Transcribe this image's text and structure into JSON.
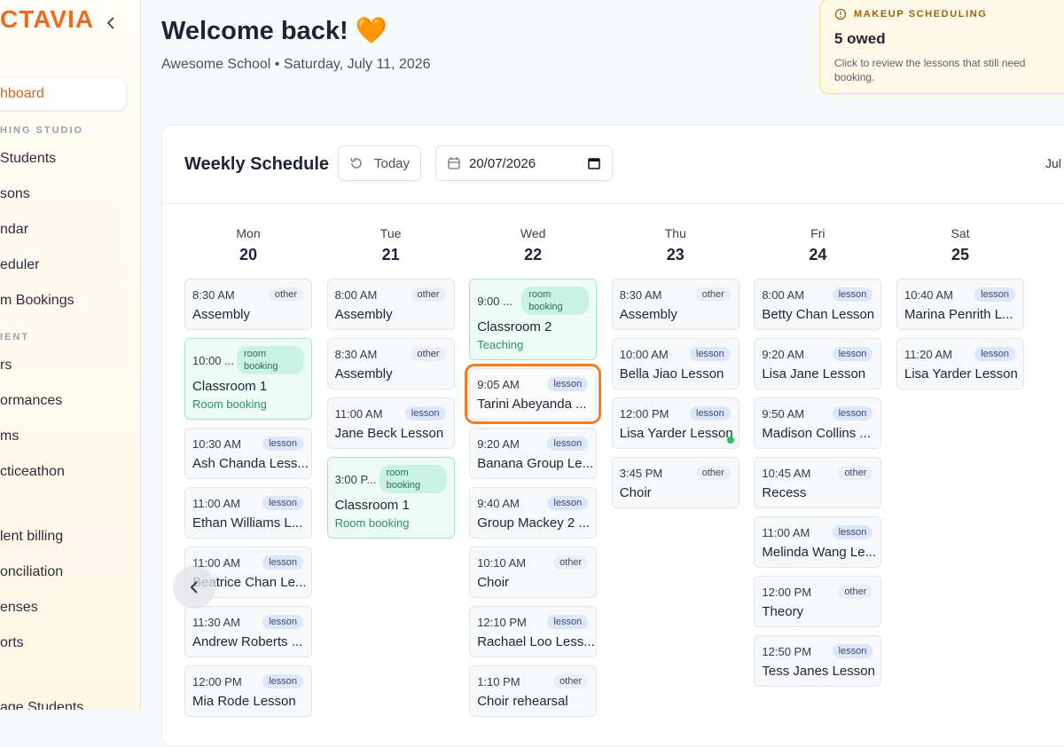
{
  "sidebar": {
    "logo": "CTAVIA",
    "groups": [
      {
        "items": [
          {
            "label": "hboard",
            "active": true
          }
        ]
      },
      {
        "heading": "HING STUDIO",
        "items": [
          {
            "label": "Students"
          },
          {
            "label": "sons"
          },
          {
            "label": "ndar"
          },
          {
            "label": "eduler"
          },
          {
            "label": "m Bookings"
          }
        ]
      },
      {
        "heading": "IENT",
        "items": [
          {
            "label": "rs"
          },
          {
            "label": "ormances"
          },
          {
            "label": "ms"
          },
          {
            "label": "cticeathon"
          }
        ]
      },
      {
        "items": [
          {
            "label": "lent billing"
          },
          {
            "label": "onciliation"
          },
          {
            "label": "enses"
          },
          {
            "label": "orts"
          }
        ]
      },
      {
        "items": [
          {
            "label": "age Students"
          }
        ]
      }
    ]
  },
  "header": {
    "title": "Welcome back! 🧡",
    "subtitle": "Awesome School • Saturday, July 11, 2026"
  },
  "makeup_card": {
    "label": "MAKEUP SCHEDULING",
    "count": "5 owed",
    "description": "Click to review the lessons that still need booking."
  },
  "schedule": {
    "title": "Weekly Schedule",
    "today_button": "Today",
    "date_input": "20/07/2026",
    "month_label": "Jul",
    "tag_colors": {
      "lesson": "#dde7fb",
      "other": "#eceef2",
      "room booking": "#c9f2e4"
    },
    "days": [
      {
        "name": "Mon",
        "date": "20",
        "events": [
          {
            "time": "8:30 AM",
            "tag": "other",
            "title": "Assembly"
          },
          {
            "time": "10:00 ...",
            "tag": "room booking",
            "title": "Classroom 1",
            "subtitle": "Room booking"
          },
          {
            "time": "10:30 AM",
            "tag": "lesson",
            "title": "Ash Chanda Less..."
          },
          {
            "time": "11:00 AM",
            "tag": "lesson",
            "title": "Ethan Williams L..."
          },
          {
            "time": "11:00 AM",
            "tag": "lesson",
            "title": "Beatrice Chan Le..."
          },
          {
            "time": "11:30 AM",
            "tag": "lesson",
            "title": "Andrew Roberts ..."
          },
          {
            "time": "12:00 PM",
            "tag": "lesson",
            "title": "Mia Rode Lesson"
          }
        ]
      },
      {
        "name": "Tue",
        "date": "21",
        "events": [
          {
            "time": "8:00 AM",
            "tag": "other",
            "title": "Assembly"
          },
          {
            "time": "8:30 AM",
            "tag": "other",
            "title": "Assembly"
          },
          {
            "time": "11:00 AM",
            "tag": "lesson",
            "title": "Jane Beck Lesson"
          },
          {
            "time": "3:00 P...",
            "tag": "room booking",
            "title": "Classroom 1",
            "subtitle": "Room booking"
          }
        ]
      },
      {
        "name": "Wed",
        "date": "22",
        "events": [
          {
            "time": "9:00 ...",
            "tag": "room booking",
            "title": "Classroom 2",
            "subtitle": "Teaching"
          },
          {
            "time": "9:05 AM",
            "tag": "lesson",
            "title": "Tarini Abeyanda ...",
            "highlighted": true
          },
          {
            "time": "9:20 AM",
            "tag": "lesson",
            "title": "Banana Group Le..."
          },
          {
            "time": "9:40 AM",
            "tag": "lesson",
            "title": "Group Mackey 2 ..."
          },
          {
            "time": "10:10 AM",
            "tag": "other",
            "title": "Choir"
          },
          {
            "time": "12:10 PM",
            "tag": "lesson",
            "title": "Rachael Loo Less..."
          },
          {
            "time": "1:10 PM",
            "tag": "other",
            "title": "Choir rehearsal"
          }
        ]
      },
      {
        "name": "Thu",
        "date": "23",
        "events": [
          {
            "time": "8:30 AM",
            "tag": "other",
            "title": "Assembly"
          },
          {
            "time": "10:00 AM",
            "tag": "lesson",
            "title": "Bella Jiao Lesson"
          },
          {
            "time": "12:00 PM",
            "tag": "lesson",
            "title": "Lisa Yarder Lesson",
            "status_dot": true
          },
          {
            "time": "3:45 PM",
            "tag": "other",
            "title": "Choir"
          }
        ]
      },
      {
        "name": "Fri",
        "date": "24",
        "events": [
          {
            "time": "8:00 AM",
            "tag": "lesson",
            "title": "Betty Chan Lesson"
          },
          {
            "time": "9:20 AM",
            "tag": "lesson",
            "title": "Lisa Jane Lesson"
          },
          {
            "time": "9:50 AM",
            "tag": "lesson",
            "title": "Madison Collins ..."
          },
          {
            "time": "10:45 AM",
            "tag": "other",
            "title": "Recess"
          },
          {
            "time": "11:00 AM",
            "tag": "lesson",
            "title": "Melinda Wang Le..."
          },
          {
            "time": "12:00 PM",
            "tag": "other",
            "title": "Theory"
          },
          {
            "time": "12:50 PM",
            "tag": "lesson",
            "title": "Tess Janes Lesson"
          }
        ]
      },
      {
        "name": "Sat",
        "date": "25",
        "events": [
          {
            "time": "10:40 AM",
            "tag": "lesson",
            "title": "Marina Penrith L..."
          },
          {
            "time": "11:20 AM",
            "tag": "lesson",
            "title": "Lisa Yarder Lesson"
          }
        ]
      }
    ]
  }
}
